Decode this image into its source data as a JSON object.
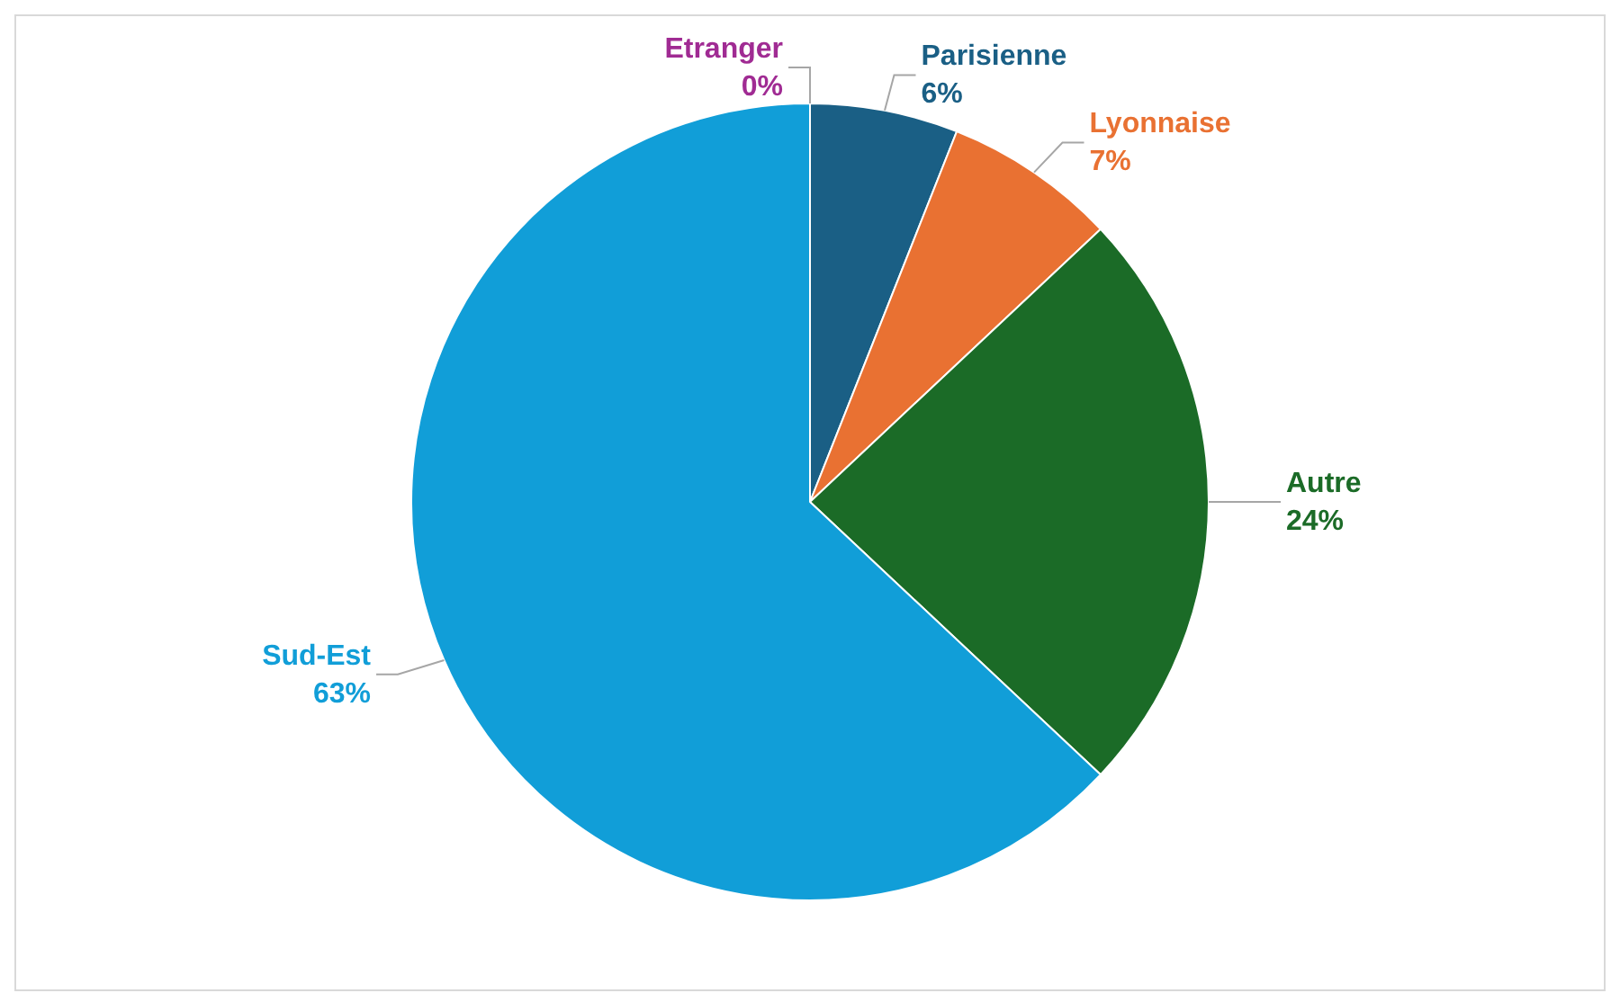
{
  "chart_data": {
    "type": "pie",
    "categories": [
      "Parisienne",
      "Lyonnaise",
      "Autre",
      "Sud-Est",
      "Etranger"
    ],
    "values": [
      6,
      7,
      24,
      63,
      0
    ],
    "colors": [
      "#1a5f85",
      "#e97132",
      "#1b6b27",
      "#119ed8",
      "#a02b93"
    ],
    "value_labels": [
      "6%",
      "7%",
      "24%",
      "63%",
      "0%"
    ],
    "legend": false
  }
}
